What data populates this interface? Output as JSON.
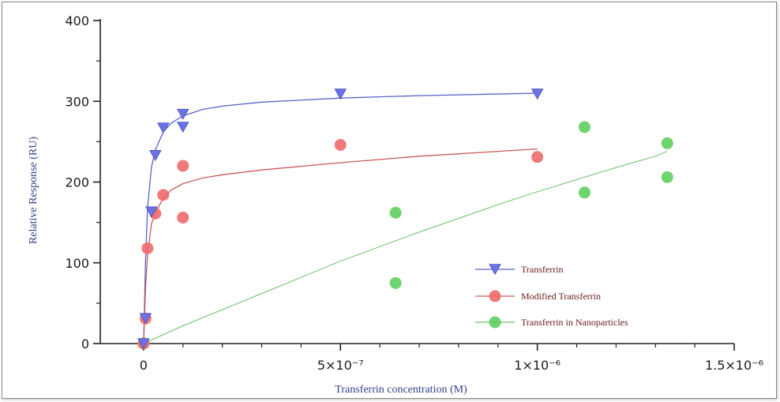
{
  "chart_data": {
    "type": "scatter",
    "title": "",
    "xlabel": "Transferrin concentration (M)",
    "ylabel": "Relative Response (RU)",
    "xlim": [
      -1.1e-07,
      1.5e-06
    ],
    "ylim": [
      0,
      400
    ],
    "x_ticks": [
      {
        "value": 0,
        "label": "0"
      },
      {
        "value": 5e-07,
        "label": "5×10⁻⁷"
      },
      {
        "value": 1e-06,
        "label": "1×10⁻⁶"
      },
      {
        "value": 1.5e-06,
        "label": "1.5×10⁻⁶"
      }
    ],
    "y_ticks": [
      {
        "value": 0,
        "label": "0"
      },
      {
        "value": 100,
        "label": "100"
      },
      {
        "value": 200,
        "label": "200"
      },
      {
        "value": 300,
        "label": "300"
      },
      {
        "value": 400,
        "label": "400"
      }
    ],
    "grid": false,
    "legend_position": "lower-right",
    "series": [
      {
        "name": "Transferrin",
        "marker": "triangle-down",
        "color": "#6b72e6",
        "line_color": "#5a63c8",
        "x": [
          0,
          5e-09,
          2e-08,
          3e-08,
          5e-08,
          1e-07,
          1e-07,
          5e-07,
          1e-06
        ],
        "y": [
          0,
          31,
          163,
          233,
          267,
          284,
          268,
          309,
          309
        ],
        "fit": {
          "x": [
            0,
            5e-09,
            1e-08,
            2e-08,
            3e-08,
            5e-08,
            7e-08,
            1e-07,
            1.5e-07,
            2e-07,
            3e-07,
            5e-07,
            7e-07,
            1e-06
          ],
          "y": [
            0,
            104,
            168,
            218,
            240,
            262,
            273,
            282,
            290,
            294,
            299,
            304,
            307,
            310
          ]
        }
      },
      {
        "name": "Modified Transferrin",
        "marker": "circle",
        "color": "#ee6a6a",
        "line_color": "#c85a5a",
        "x": [
          0,
          5e-09,
          1e-08,
          3e-08,
          5e-08,
          1e-07,
          1e-07,
          5e-07,
          1e-06
        ],
        "y": [
          0,
          31,
          118,
          161,
          184,
          220,
          156,
          246,
          231
        ],
        "fit": {
          "x": [
            0,
            5e-09,
            1e-08,
            2e-08,
            3e-08,
            5e-08,
            7e-08,
            1e-07,
            1.5e-07,
            2e-07,
            3e-07,
            5e-07,
            7e-07,
            1e-06
          ],
          "y": [
            0,
            70,
            110,
            148,
            162,
            180,
            190,
            198,
            205,
            209,
            215,
            224,
            232,
            241
          ]
        }
      },
      {
        "name": "Transferrin in Nanoparticles",
        "marker": "circle",
        "color": "#5ecf5e",
        "line_color": "#6abf6a",
        "x": [
          0,
          6.4e-07,
          6.4e-07,
          1.12e-06,
          1.12e-06,
          1.33e-06,
          1.33e-06
        ],
        "y": [
          0,
          162,
          75,
          268,
          187,
          248,
          206
        ],
        "fit": {
          "x": [
            0,
            1e-07,
            2e-07,
            3e-07,
            4e-07,
            5e-07,
            6e-07,
            7e-07,
            8e-07,
            9e-07,
            1e-06,
            1.1e-06,
            1.2e-06,
            1.3e-06,
            1.33e-06
          ],
          "y": [
            0,
            22,
            42,
            62,
            82,
            102,
            120,
            138,
            155,
            172,
            188,
            203,
            218,
            232,
            238
          ]
        }
      }
    ]
  }
}
